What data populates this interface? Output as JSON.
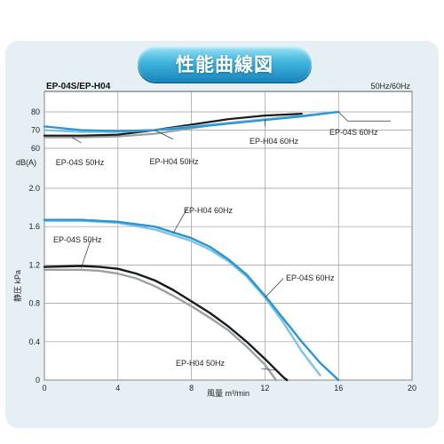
{
  "title": "性能曲線図",
  "model": "EP-04S/EP-H04",
  "frequency": "50Hz/60Hz",
  "chart_data": [
    {
      "type": "line",
      "name": "noise",
      "ylabel": "dB(A)",
      "ylim": [
        60,
        85
      ],
      "yticks": [
        60,
        70,
        80
      ],
      "xlim": [
        0,
        20
      ],
      "series": [
        {
          "name": "EP-04S 50Hz",
          "color": "#9aa0a3",
          "points": [
            [
              0,
              66
            ],
            [
              2,
              66
            ],
            [
              4,
              66.5
            ],
            [
              6,
              68
            ],
            [
              8,
              71
            ],
            [
              10,
              74
            ],
            [
              12,
              76
            ],
            [
              14,
              78
            ]
          ]
        },
        {
          "name": "EP-H04 50Hz",
          "color": "#1a1a1a",
          "points": [
            [
              0,
              67
            ],
            [
              2,
              67
            ],
            [
              4,
              67.5
            ],
            [
              6,
              70
            ],
            [
              8,
              73
            ],
            [
              10,
              76
            ],
            [
              12,
              78
            ],
            [
              14,
              79
            ]
          ]
        },
        {
          "name": "EP-H04 60Hz",
          "color": "#7ec3e6",
          "points": [
            [
              0,
              70
            ],
            [
              2,
              69
            ],
            [
              4,
              69
            ],
            [
              6,
              70
            ],
            [
              8,
              72
            ],
            [
              10,
              74
            ],
            [
              12,
              76
            ],
            [
              14,
              78
            ],
            [
              16,
              80
            ]
          ]
        },
        {
          "name": "EP-04S 60Hz",
          "color": "#2a95d3",
          "points": [
            [
              0,
              72
            ],
            [
              2,
              70
            ],
            [
              4,
              69.5
            ],
            [
              6,
              70
            ],
            [
              8,
              71.5
            ],
            [
              10,
              73.5
            ],
            [
              12,
              75.5
            ],
            [
              14,
              77.5
            ],
            [
              16,
              80
            ]
          ]
        }
      ],
      "annotations": [
        "EP-04S 60Hz",
        "EP-H04 60Hz",
        "EP-H04 50Hz",
        "EP-04S 50Hz"
      ]
    },
    {
      "type": "line",
      "name": "pressure",
      "ylabel": "静圧 kPa",
      "xlabel": "風量 m³/min",
      "ylim": [
        0,
        2.0
      ],
      "yticks": [
        "0",
        "0.4",
        "0.8",
        "1.2",
        "1.6",
        "2.0"
      ],
      "xlim": [
        0,
        20
      ],
      "xticks": [
        0,
        4,
        8,
        12,
        16,
        20
      ],
      "series": [
        {
          "name": "EP-H04 60Hz",
          "color": "#7ec3e6",
          "points": [
            [
              0,
              1.66
            ],
            [
              2,
              1.66
            ],
            [
              4,
              1.64
            ],
            [
              6,
              1.57
            ],
            [
              8,
              1.45
            ],
            [
              9,
              1.36
            ],
            [
              10,
              1.24
            ],
            [
              11,
              1.08
            ],
            [
              12,
              0.86
            ],
            [
              13,
              0.6
            ],
            [
              14,
              0.3
            ],
            [
              15,
              0.05
            ]
          ]
        },
        {
          "name": "EP-04S 60Hz",
          "color": "#2a95d3",
          "points": [
            [
              0,
              1.67
            ],
            [
              2,
              1.67
            ],
            [
              4,
              1.65
            ],
            [
              6,
              1.6
            ],
            [
              8,
              1.48
            ],
            [
              9,
              1.39
            ],
            [
              10,
              1.26
            ],
            [
              11,
              1.1
            ],
            [
              12,
              0.88
            ],
            [
              13,
              0.64
            ],
            [
              14,
              0.4
            ],
            [
              15,
              0.18
            ],
            [
              16,
              0
            ]
          ]
        },
        {
          "name": "EP-04S 50Hz",
          "color": "#9aa0a3",
          "points": [
            [
              0,
              1.15
            ],
            [
              2,
              1.15
            ],
            [
              3,
              1.14
            ],
            [
              4,
              1.11
            ],
            [
              5,
              1.06
            ],
            [
              6,
              0.98
            ],
            [
              7,
              0.88
            ],
            [
              8,
              0.77
            ],
            [
              9,
              0.65
            ],
            [
              10,
              0.52
            ],
            [
              11,
              0.35
            ],
            [
              12,
              0.16
            ],
            [
              12.6,
              0
            ]
          ]
        },
        {
          "name": "EP-H04 50Hz",
          "color": "#1a1a1a",
          "points": [
            [
              0,
              1.18
            ],
            [
              2,
              1.19
            ],
            [
              3,
              1.18
            ],
            [
              4,
              1.16
            ],
            [
              5,
              1.11
            ],
            [
              6,
              1.04
            ],
            [
              7,
              0.94
            ],
            [
              8,
              0.82
            ],
            [
              9,
              0.7
            ],
            [
              10,
              0.56
            ],
            [
              11,
              0.4
            ],
            [
              12,
              0.22
            ],
            [
              13,
              0.03
            ],
            [
              13.2,
              0
            ]
          ]
        }
      ],
      "annotations": [
        "EP-H04 60Hz",
        "EP-04S 50Hz",
        "EP-04S 60Hz",
        "EP-H04 50Hz"
      ]
    }
  ]
}
